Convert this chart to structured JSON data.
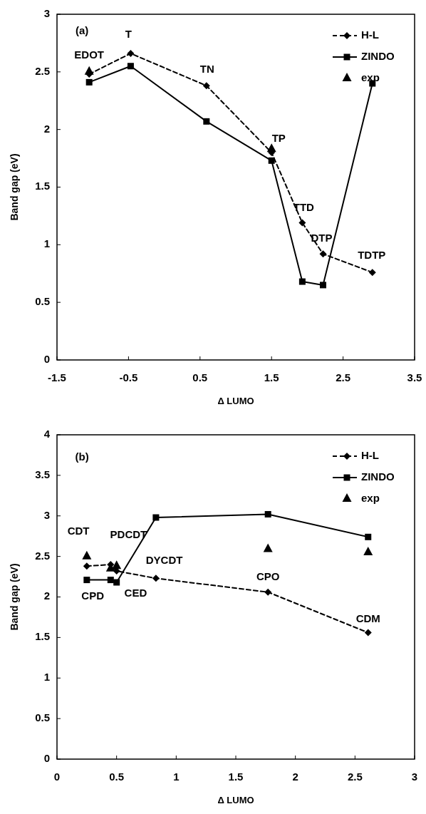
{
  "chart_data": [
    {
      "type": "line",
      "xlabel": "Δ LUMO",
      "ylabel": "Band gap (eV)",
      "xlim": [
        -1.5,
        3.5
      ],
      "xticks": [
        -1.5,
        -0.5,
        0.5,
        1.5,
        2.5,
        3.5
      ],
      "ylim": [
        0,
        3
      ],
      "yticks": [
        0,
        0.5,
        1,
        1.5,
        2,
        2.5,
        3
      ],
      "grid": false,
      "legend": "top right",
      "series": [
        {
          "name": "H-L",
          "color": "#000000",
          "marker": "diamond",
          "line_style": "dashed",
          "x": [
            -1.05,
            -0.47,
            0.59,
            1.5,
            1.93,
            2.22,
            2.91
          ],
          "values": [
            2.48,
            2.66,
            2.38,
            1.8,
            1.19,
            0.92,
            0.76
          ]
        },
        {
          "name": "ZINDO",
          "color": "#000000",
          "marker": "square",
          "line_style": "solid",
          "x": [
            -1.05,
            -0.47,
            0.59,
            1.5,
            1.93,
            2.22,
            2.91
          ],
          "values": [
            2.41,
            2.55,
            2.07,
            1.73,
            0.68,
            0.65,
            2.4
          ]
        },
        {
          "name": "exp",
          "type": "scatter",
          "color": "#000000",
          "marker": "triangle",
          "x": [
            -1.05,
            1.5
          ],
          "values": [
            2.5,
            1.83
          ]
        }
      ],
      "annotations": [
        "(a)",
        "EDOT",
        "T",
        "TN",
        "TP",
        "TTD",
        "DTP",
        "TDTP"
      ]
    },
    {
      "type": "line",
      "xlabel": "Δ LUMO",
      "ylabel": "Band gap (eV)",
      "xlim": [
        0,
        3
      ],
      "xticks": [
        0,
        0.5,
        1,
        1.5,
        2,
        2.5,
        3
      ],
      "ylim": [
        0,
        4
      ],
      "yticks": [
        0,
        0.5,
        1,
        1.5,
        2,
        2.5,
        3,
        3.5,
        4
      ],
      "grid": false,
      "legend": "top right",
      "series": [
        {
          "name": "H-L",
          "color": "#000000",
          "marker": "diamond",
          "line_style": "dashed",
          "x": [
            0.25,
            0.45,
            0.5,
            0.83,
            1.77,
            2.61
          ],
          "values": [
            2.38,
            2.4,
            2.32,
            2.23,
            2.06,
            1.56
          ]
        },
        {
          "name": "ZINDO",
          "color": "#000000",
          "marker": "square",
          "line_style": "solid",
          "x": [
            0.25,
            0.45,
            0.5,
            0.83,
            1.77,
            2.61
          ],
          "values": [
            2.21,
            2.21,
            2.18,
            2.98,
            3.02,
            2.74
          ]
        },
        {
          "name": "exp",
          "type": "scatter",
          "color": "#000000",
          "marker": "triangle",
          "x": [
            0.25,
            0.45,
            0.5,
            1.77,
            2.61
          ],
          "values": [
            2.5,
            2.35,
            2.38,
            2.59,
            2.55
          ]
        }
      ],
      "annotations": [
        "(b)",
        "CDT",
        "PDCDT",
        "DYCDT",
        "CED",
        "CPD",
        "CPO",
        "CDM"
      ]
    }
  ]
}
